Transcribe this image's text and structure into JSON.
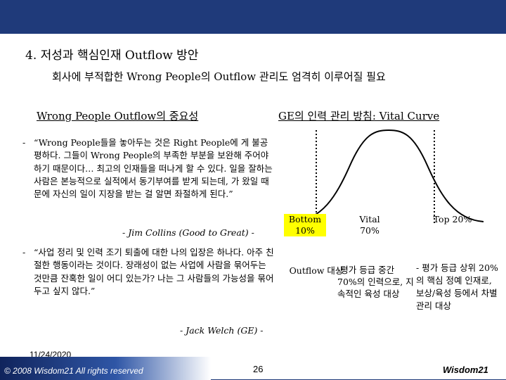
{
  "header": {
    "title": "4. 저성과 핵심인재 Outflow 방안",
    "subtitle": "회사에 부적합한 Wrong People의 Outflow 관리도 엄격히 이루어질 필요"
  },
  "left": {
    "heading": "Wrong People Outflow의 중요성",
    "quote1": {
      "bullet": "-",
      "text": "“Wrong People들을 놓아두는 것은 Right People에 게 불공평하다. 그들이 Wrong People의 부족한 부분을 보완해 주어야 하기 때문이다… 최고의 인재들을 떠나게 할 수 있다. 일을 잘하는 사람은 본능적으로 실적에서 동기부여를 받게 되는데, 가 왔일 때문에 자신의 일이 지장을 받는 걸 알면 좌절하게 된다.”",
      "attribution": "- Jim Collins (Good to Great) -"
    },
    "quote2": {
      "bullet": "-",
      "text": "“사업 정리 및 인력 조기 퇴출에 대한 나의 입장은 하나다. 아주 친절한 행동이라는 것이다. 장래성이 없는 사업에 사람을 묶어두는 것만큼 잔혹한 일이 어디 있는가? 나는 그 사람들의 가능성을 묶어두고 싶지 않다.”",
      "attribution": "- Jack Welch (GE) -"
    }
  },
  "right": {
    "heading": "GE의 인력 관리 방침:  Vital Curve",
    "segments": {
      "bottom": "Bottom 10%",
      "vital": "Vital 70%",
      "top": "Top 20%"
    },
    "outflow_label": "Outflow 대상",
    "vital_desc": "-평가 등급 중간 70%의 인력으로, 지속적인 육성 대상",
    "top_desc": "- 평가 등급 상위 20%의 핵심 정예 인재로, 보상/육성 등에서 차별 관리 대상"
  },
  "footer": {
    "date": "11/24/2020",
    "copyright": "© 2008  Wisdom21  All rights reserved",
    "page": "26",
    "brand": "Wisdom21"
  },
  "colors": {
    "bar": "#1f3a7a",
    "highlight": "#ffff00"
  }
}
